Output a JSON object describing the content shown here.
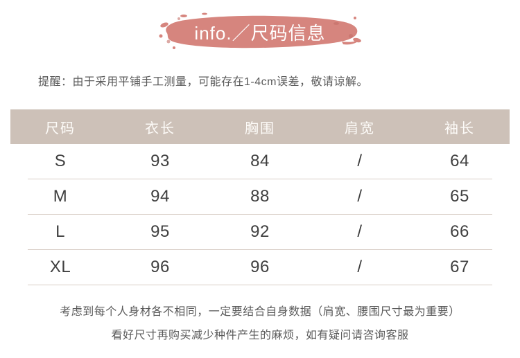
{
  "header": {
    "title": "info.／尺码信息"
  },
  "notice": {
    "text": "提醒：由于采用平铺手工测量，可能存在1-4cm误差，敬请谅解。"
  },
  "size_table": {
    "columns": [
      "尺码",
      "衣长",
      "胸围",
      "肩宽",
      "袖长"
    ],
    "rows": [
      [
        "S",
        "93",
        "84",
        "/",
        "64"
      ],
      [
        "M",
        "94",
        "88",
        "/",
        "65"
      ],
      [
        "L",
        "95",
        "92",
        "/",
        "66"
      ],
      [
        "XL",
        "96",
        "96",
        "/",
        "67"
      ]
    ]
  },
  "footnote": {
    "line1": "考虑到每个人身材各不相同，一定要结合自身数据（肩宽、腰围尺寸最为重要）",
    "line2": "看好尺寸再购买减少种件产生的麻烦，如有疑问请咨询客服"
  },
  "colors": {
    "brush": "#d6857e",
    "brush-dark": "#c46f68",
    "header-bg": "#cdc1b8",
    "divider": "#d7ccc5",
    "text-dark": "#3f3f3f",
    "text-gray": "#5a5a5a"
  }
}
